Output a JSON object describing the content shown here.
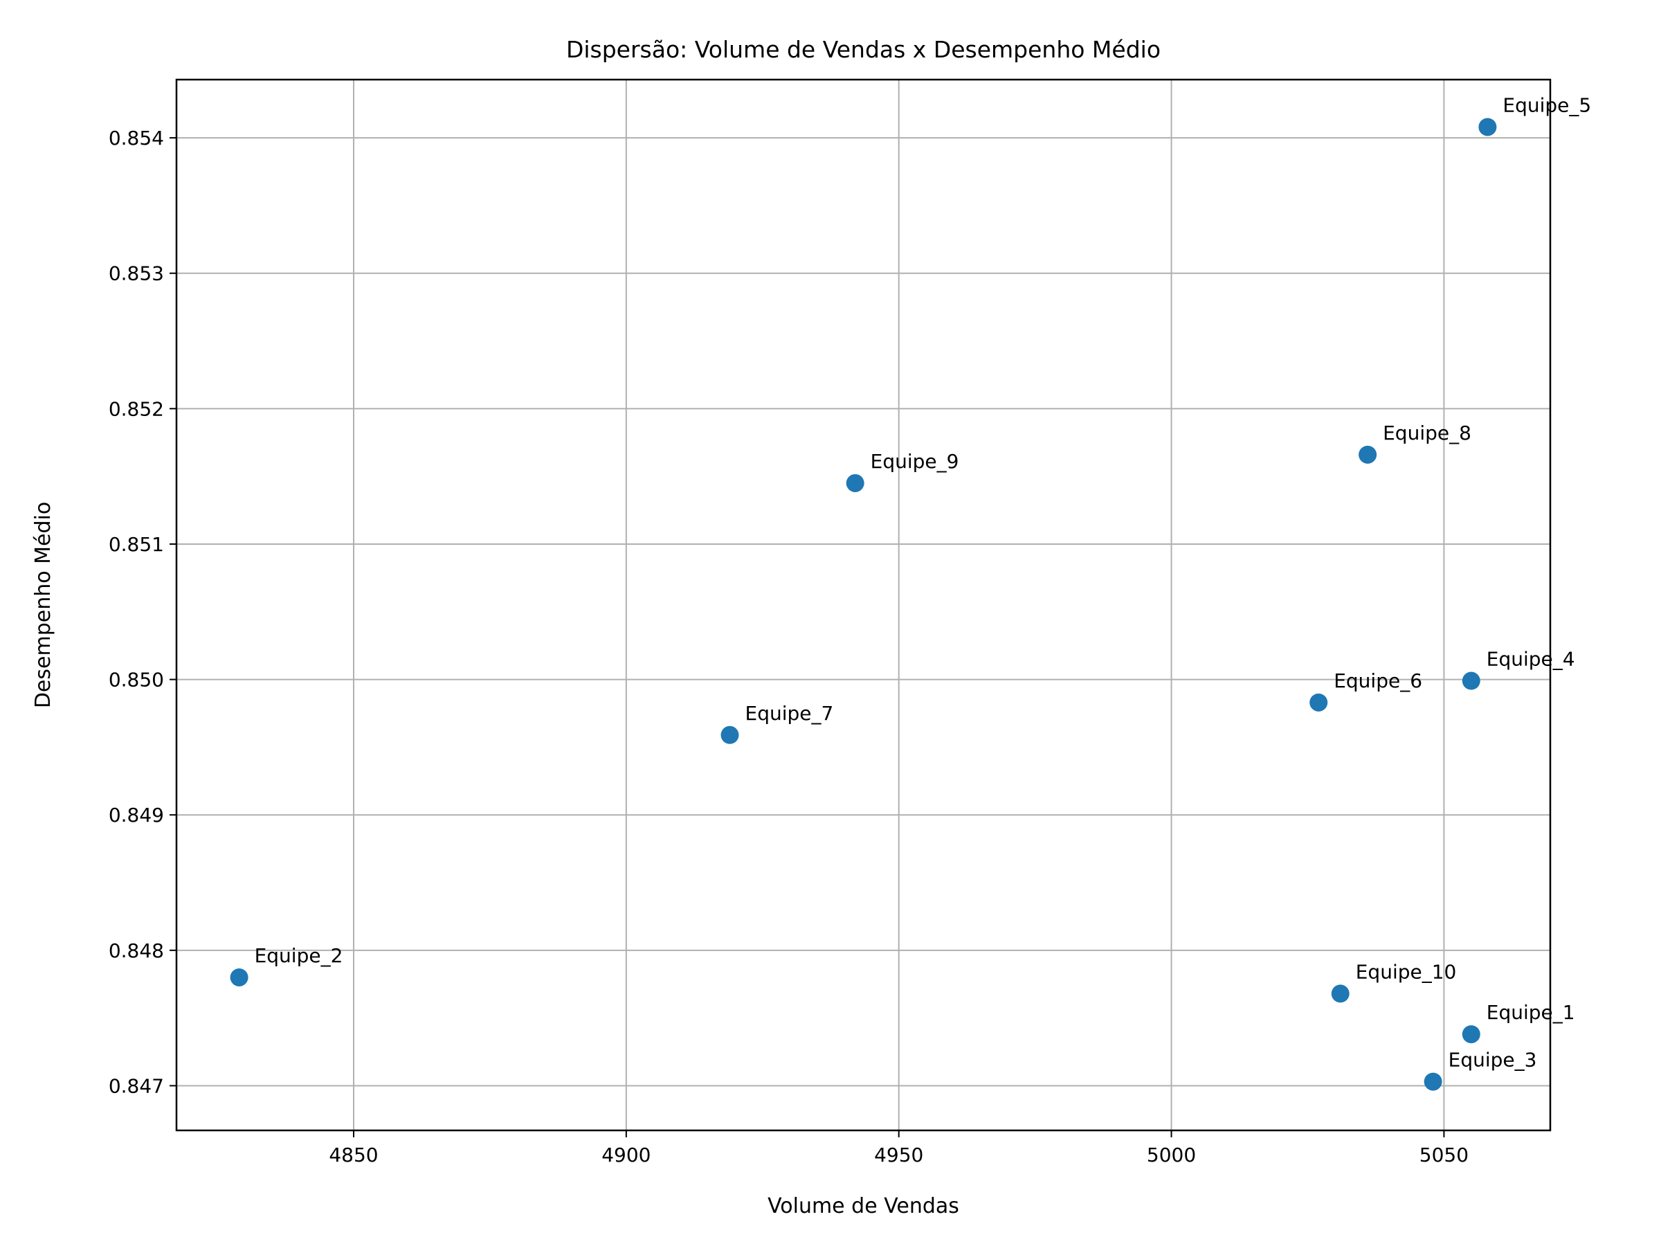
{
  "chart_data": {
    "type": "scatter",
    "title": "Dispersão: Volume de Vendas x Desempenho Médio",
    "xlabel": "Volume de Vendas",
    "ylabel": "Desempenho Médio",
    "xlim": [
      4817.5,
      5069.5
    ],
    "ylim": [
      0.84667,
      0.85443
    ],
    "xticks": [
      4850,
      4900,
      4950,
      5000,
      5050
    ],
    "xtick_labels": [
      "4850",
      "4900",
      "4950",
      "5000",
      "5050"
    ],
    "yticks": [
      0.847,
      0.848,
      0.849,
      0.85,
      0.851,
      0.852,
      0.853,
      0.854
    ],
    "ytick_labels": [
      "0.847",
      "0.848",
      "0.849",
      "0.850",
      "0.851",
      "0.852",
      "0.853",
      "0.854"
    ],
    "grid": true,
    "marker_color": "#1f77b4",
    "points": [
      {
        "label": "Equipe_1",
        "x": 5055,
        "y": 0.84738
      },
      {
        "label": "Equipe_2",
        "x": 4829,
        "y": 0.8478
      },
      {
        "label": "Equipe_3",
        "x": 5048,
        "y": 0.84703
      },
      {
        "label": "Equipe_4",
        "x": 5055,
        "y": 0.84999
      },
      {
        "label": "Equipe_5",
        "x": 5058,
        "y": 0.85408
      },
      {
        "label": "Equipe_6",
        "x": 5027,
        "y": 0.84983
      },
      {
        "label": "Equipe_7",
        "x": 4919,
        "y": 0.84959
      },
      {
        "label": "Equipe_8",
        "x": 5036,
        "y": 0.85166
      },
      {
        "label": "Equipe_9",
        "x": 4942,
        "y": 0.85145
      },
      {
        "label": "Equipe_10",
        "x": 5031,
        "y": 0.84768
      }
    ]
  }
}
